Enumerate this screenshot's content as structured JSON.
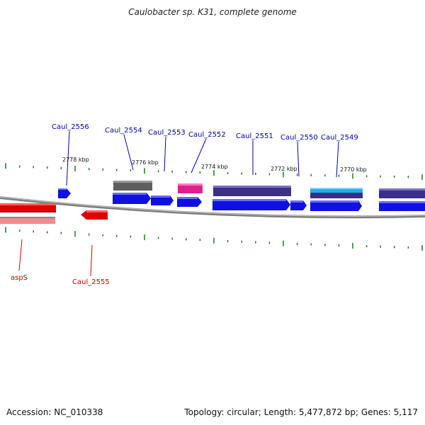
{
  "title": "Caulobacter sp. K31, complete genome",
  "footer": {
    "accession": "Accession: NC_010338",
    "topology": "Topology: circular; Length: 5,477,872 bp; Genes: 5,117"
  },
  "colors": {
    "forward": "#1010e0",
    "reverse": "#e00000",
    "ruler_tick": "#1a7a1a",
    "backbone": "#7f7f7f",
    "label_forward": "#0000aa",
    "label_reverse": "#cc0000"
  },
  "scale_labels": [
    "2778 kbp",
    "2776 kbp",
    "2774 kbp",
    "2772 kbp",
    "2770 kbp"
  ],
  "gene_labels": [
    "Caul_2556",
    "Caul_2554",
    "Caul_2553",
    "Caul_2552",
    "Caul_2551",
    "Caul_2550",
    "Caul_2549",
    "aspS",
    "Caul_2555"
  ]
}
